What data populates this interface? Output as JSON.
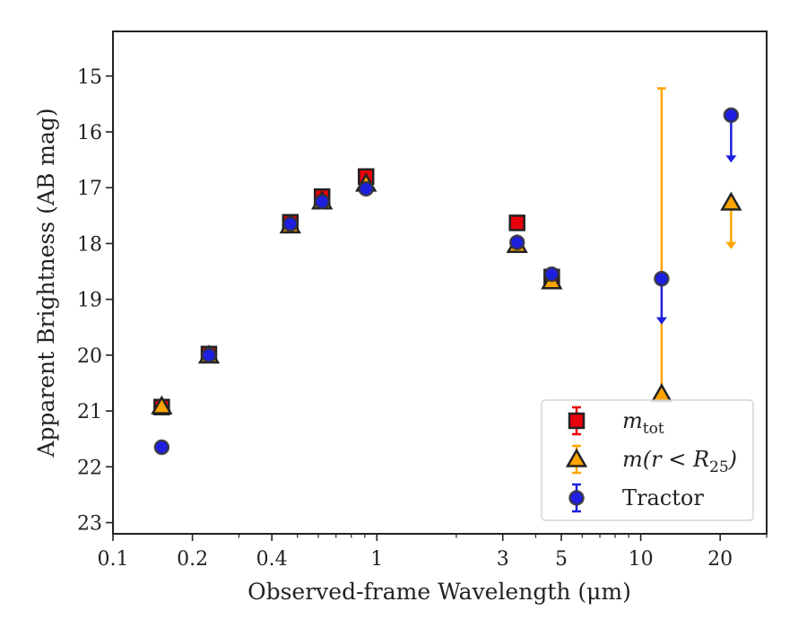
{
  "chart_data": {
    "type": "scatter",
    "xlabel": "Observed-frame Wavelength (μm)",
    "ylabel": "Apparent Brightness (AB mag)",
    "x_scale": "log",
    "xlim": [
      0.1,
      30
    ],
    "ylim": [
      23.2,
      14.2
    ],
    "y_inverted": true,
    "x_ticks": [
      {
        "value": 0.1,
        "label": "0.1"
      },
      {
        "value": 0.2,
        "label": "0.2"
      },
      {
        "value": 0.4,
        "label": "0.4"
      },
      {
        "value": 1,
        "label": "1"
      },
      {
        "value": 3,
        "label": "3"
      },
      {
        "value": 5,
        "label": "5"
      },
      {
        "value": 10,
        "label": "10"
      },
      {
        "value": 20,
        "label": "20"
      }
    ],
    "y_ticks": [
      {
        "value": 15,
        "label": "15"
      },
      {
        "value": 16,
        "label": "16"
      },
      {
        "value": 17,
        "label": "17"
      },
      {
        "value": 18,
        "label": "18"
      },
      {
        "value": 19,
        "label": "19"
      },
      {
        "value": 20,
        "label": "20"
      },
      {
        "value": 21,
        "label": "21"
      },
      {
        "value": 22,
        "label": "22"
      },
      {
        "value": 23,
        "label": "23"
      }
    ],
    "grid": false,
    "legend_position": "bottom-right",
    "series": [
      {
        "name": "m_tot",
        "label_main": "m",
        "label_sub": "tot",
        "marker": "square",
        "color": "#e8000b",
        "points": [
          {
            "x": 0.153,
            "y": 20.93
          },
          {
            "x": 0.231,
            "y": 19.98
          },
          {
            "x": 0.47,
            "y": 17.62
          },
          {
            "x": 0.62,
            "y": 17.16
          },
          {
            "x": 0.91,
            "y": 16.8
          },
          {
            "x": 3.4,
            "y": 17.63
          },
          {
            "x": 4.6,
            "y": 18.6
          }
        ]
      },
      {
        "name": "m(r < R25)",
        "label_main": "m(r < R",
        "label_sub": "25",
        "label_end": ")",
        "marker": "triangle",
        "color": "#ffa500",
        "points": [
          {
            "x": 0.153,
            "y": 20.92
          },
          {
            "x": 0.231,
            "y": 20.01
          },
          {
            "x": 0.47,
            "y": 17.68
          },
          {
            "x": 0.62,
            "y": 17.25
          },
          {
            "x": 0.91,
            "y": 16.93
          },
          {
            "x": 3.4,
            "y": 18.03
          },
          {
            "x": 4.6,
            "y": 18.68
          },
          {
            "x": 12.0,
            "y": 20.7,
            "err_low": 15.22
          },
          {
            "x": 22.0,
            "y": 17.27,
            "upper_limit": 18.1
          }
        ]
      },
      {
        "name": "Tractor",
        "marker": "circle",
        "color": "#1f1fe0",
        "points": [
          {
            "x": 0.153,
            "y": 21.65
          },
          {
            "x": 0.231,
            "y": 20.0
          },
          {
            "x": 0.47,
            "y": 17.65
          },
          {
            "x": 0.62,
            "y": 17.25
          },
          {
            "x": 0.91,
            "y": 17.02
          },
          {
            "x": 3.4,
            "y": 17.98
          },
          {
            "x": 4.6,
            "y": 18.55
          },
          {
            "x": 12.0,
            "y": 18.63,
            "upper_limit": 19.45
          },
          {
            "x": 22.0,
            "y": 15.7,
            "upper_limit": 16.55
          }
        ]
      }
    ]
  }
}
